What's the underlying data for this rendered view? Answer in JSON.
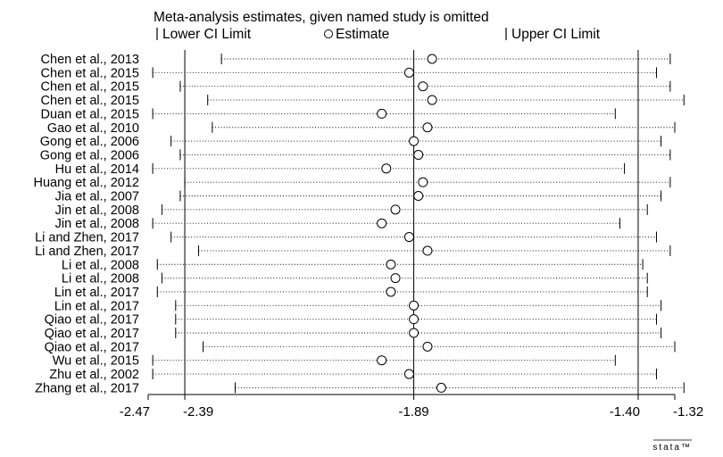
{
  "chart_data": {
    "type": "scatter",
    "title": "Meta-analysis estimates, given named study is omitted",
    "legend": [
      "Lower CI Limit",
      "Estimate",
      "Upper CI Limit"
    ],
    "legend_placement": "top",
    "x_ticks": [
      "-2.47",
      "-2.39",
      "-1.89",
      "-1.40",
      "-1.32"
    ],
    "x_tick_values": [
      -2.47,
      -2.39,
      -1.89,
      -1.4,
      -1.32
    ],
    "reference_lines": [
      -2.39,
      -1.89,
      -1.4
    ],
    "xlim": [
      -2.47,
      -1.32
    ],
    "grid": false,
    "studies": [
      {
        "label": "Chen et al., 2013",
        "lower": -2.31,
        "estimate": -1.85,
        "upper": -1.33
      },
      {
        "label": "Chen et al., 2015",
        "lower": -2.46,
        "estimate": -1.9,
        "upper": -1.36
      },
      {
        "label": "Chen et al., 2015",
        "lower": -2.4,
        "estimate": -1.87,
        "upper": -1.33
      },
      {
        "label": "Chen et al., 2015",
        "lower": -2.34,
        "estimate": -1.85,
        "upper": -1.3
      },
      {
        "label": "Duan et al., 2015",
        "lower": -2.46,
        "estimate": -1.96,
        "upper": -1.45
      },
      {
        "label": "Gao et al., 2010",
        "lower": -2.33,
        "estimate": -1.86,
        "upper": -1.32
      },
      {
        "label": "Gong et al., 2006",
        "lower": -2.42,
        "estimate": -1.89,
        "upper": -1.35
      },
      {
        "label": "Gong et al., 2006",
        "lower": -2.4,
        "estimate": -1.88,
        "upper": -1.33
      },
      {
        "label": "Hu et al., 2014",
        "lower": -2.46,
        "estimate": -1.95,
        "upper": -1.43
      },
      {
        "label": "Huang et al., 2012",
        "lower": -2.39,
        "estimate": -1.87,
        "upper": -1.33
      },
      {
        "label": "Jia et al., 2007",
        "lower": -2.4,
        "estimate": -1.88,
        "upper": -1.35
      },
      {
        "label": "Jin et al., 2008",
        "lower": -2.44,
        "estimate": -1.93,
        "upper": -1.38
      },
      {
        "label": "Jin et al., 2008",
        "lower": -2.46,
        "estimate": -1.96,
        "upper": -1.44
      },
      {
        "label": "Li and Zhen, 2017",
        "lower": -2.42,
        "estimate": -1.9,
        "upper": -1.36
      },
      {
        "label": "Li and Zhen, 2017",
        "lower": -2.36,
        "estimate": -1.86,
        "upper": -1.33
      },
      {
        "label": "Li et al., 2008",
        "lower": -2.45,
        "estimate": -1.94,
        "upper": -1.39
      },
      {
        "label": "Li et al., 2008",
        "lower": -2.44,
        "estimate": -1.93,
        "upper": -1.38
      },
      {
        "label": "Lin et al., 2017",
        "lower": -2.45,
        "estimate": -1.94,
        "upper": -1.38
      },
      {
        "label": "Lin et al., 2017",
        "lower": -2.41,
        "estimate": -1.89,
        "upper": -1.35
      },
      {
        "label": "Qiao et al., 2017",
        "lower": -2.41,
        "estimate": -1.89,
        "upper": -1.36
      },
      {
        "label": "Qiao et al., 2017",
        "lower": -2.41,
        "estimate": -1.89,
        "upper": -1.35
      },
      {
        "label": "Qiao et al., 2017",
        "lower": -2.35,
        "estimate": -1.86,
        "upper": -1.32
      },
      {
        "label": "Wu et al., 2015",
        "lower": -2.46,
        "estimate": -1.96,
        "upper": -1.45
      },
      {
        "label": "Zhu et al., 2002",
        "lower": -2.46,
        "estimate": -1.9,
        "upper": -1.36
      },
      {
        "label": "Zhang et al., 2017",
        "lower": -2.28,
        "estimate": -1.83,
        "upper": -1.3
      }
    ]
  },
  "watermark": "stata™"
}
